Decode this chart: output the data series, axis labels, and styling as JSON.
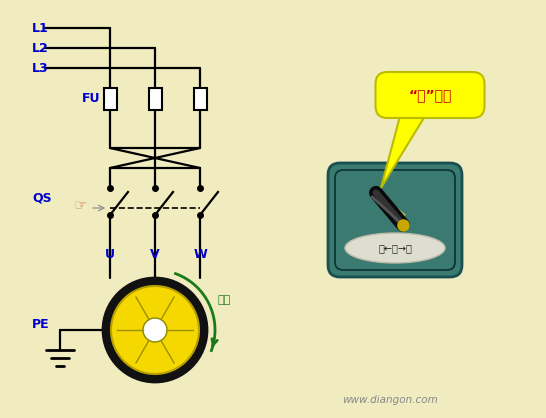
{
  "bg_color": "#f0ecc0",
  "line_color": "#000000",
  "blue_text": "#0000cc",
  "green_text": "#1a7a1a",
  "red_text": "#cc0000",
  "watermark": "www.diangon.com",
  "speech_text": "“倒”位置",
  "switch_label": "顺←停→倒",
  "switch_box_color": "#3a7a70",
  "bubble_color": "#ffff00",
  "motor_outer": "#111111",
  "motor_yellow": "#f5d800",
  "motor_spoke": "#9a9000"
}
